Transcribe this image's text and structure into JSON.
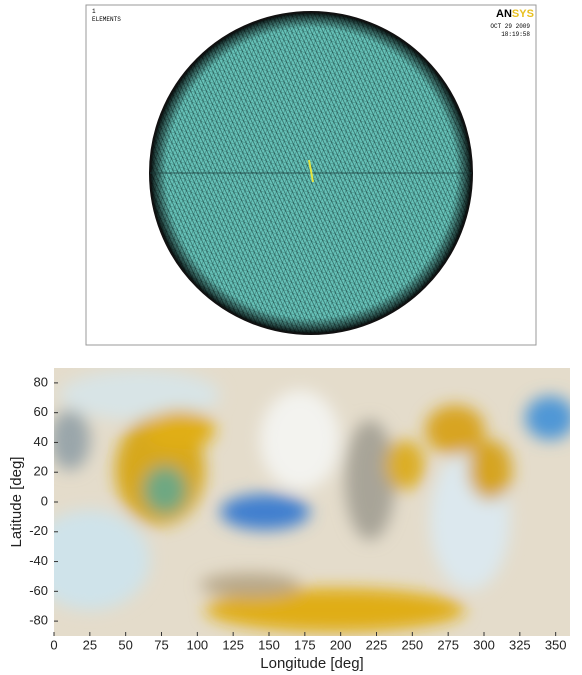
{
  "mesh_panel": {
    "number": "1",
    "label": "ELEMENTS",
    "logo": [
      "AN",
      "SYS"
    ],
    "date": "OCT 29 2009",
    "time": "18:19:58"
  },
  "chart_data": {
    "type": "heatmap",
    "x_label": "Longitude [deg]",
    "y_label": "Latitude [deg]",
    "xlim": [
      0,
      360
    ],
    "ylim": [
      -90,
      90
    ],
    "xticks": [
      0,
      25,
      50,
      75,
      100,
      125,
      150,
      175,
      200,
      225,
      250,
      275,
      300,
      325,
      350
    ],
    "yticks": [
      -80,
      -60,
      -40,
      -20,
      0,
      20,
      40,
      60,
      80
    ]
  }
}
